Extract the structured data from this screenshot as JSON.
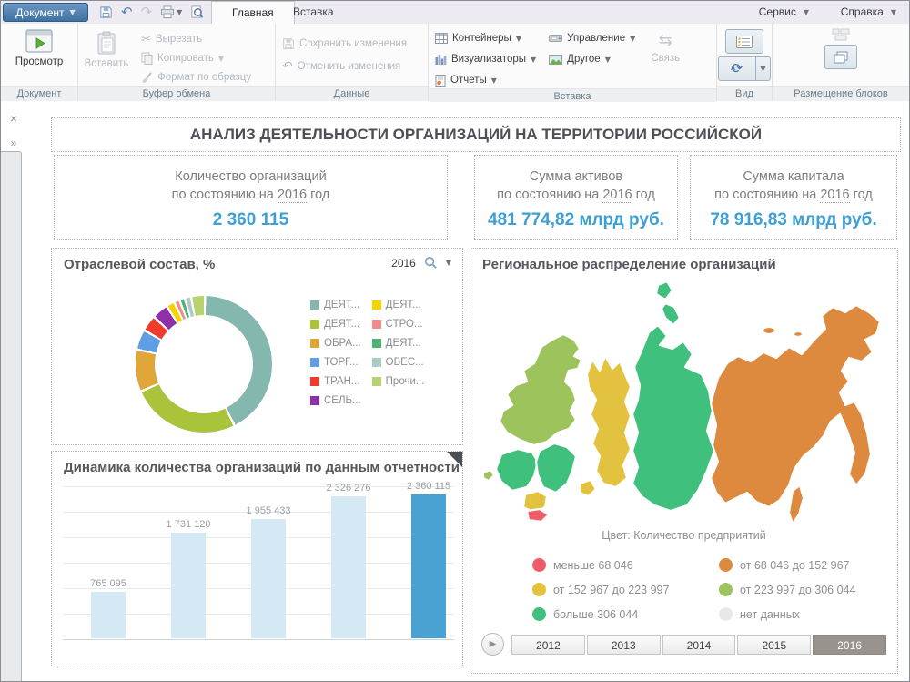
{
  "window": {
    "document_menu": "Документ",
    "tabs": [
      {
        "label": "Главная",
        "active": true
      },
      {
        "label": "Вставка",
        "active": false
      }
    ],
    "menus_right": [
      {
        "label": "Сервис"
      },
      {
        "label": "Справка"
      }
    ]
  },
  "ribbon": {
    "preview": "Просмотр",
    "paste": "Вставить",
    "cut": "Вырезать",
    "copy": "Копировать",
    "format_painter": "Формат по образцу",
    "save_changes": "Сохранить изменения",
    "undo_changes": "Отменить изменения",
    "containers": "Контейнеры",
    "visualizers": "Визуализаторы",
    "reports": "Отчеты",
    "management": "Управление",
    "other": "Другое",
    "link": "Связь",
    "groups": {
      "document": "Документ",
      "clipboard": "Буфер обмена",
      "data": "Данные",
      "insert": "Вставка",
      "view": "Вид",
      "layout": "Размещение блоков"
    }
  },
  "dashboard": {
    "title": "АНАЛИЗ ДЕЯТЕЛЬНОСТИ ОРГАНИЗАЦИЙ НА ТЕРРИТОРИИ РОССИЙСКОЙ",
    "accent_color": "#3d9fd3",
    "kpis": [
      {
        "line1": "Количество организаций",
        "line2_prefix": "по состоянию на",
        "year": "2016",
        "line2_suffix": "год",
        "value": "2 360 115"
      },
      {
        "line1": "Сумма активов",
        "line2_prefix": "по состоянию на",
        "year": "2016",
        "line2_suffix": "год",
        "value": "481 774,82 млрд руб."
      },
      {
        "line1": "Сумма капитала",
        "line2_prefix": "по состоянию на",
        "year": "2016",
        "line2_suffix": "год",
        "value": "78 916,83 млрд руб."
      }
    ],
    "donut_block": {
      "title": "Отраслевой состав, %",
      "year": "2016"
    },
    "bar_block": {
      "title": "Динамика количества организаций по данным отчетности"
    },
    "map_block": {
      "title": "Региональное распределение организаций",
      "legend_title": "Цвет: Количество предприятий"
    }
  },
  "chart_data": [
    {
      "type": "pie",
      "title": "Отраслевой состав, %",
      "year": "2016",
      "hole": 0.72,
      "legend_position": "right",
      "series": [
        {
          "name": "ДЕЯТ...",
          "value": 44.5,
          "color": "#84b7ae"
        },
        {
          "name": "ДЕЯТ...",
          "value": 27.0,
          "color": "#a9c33b"
        },
        {
          "name": "ОБРА...",
          "value": 10.0,
          "color": "#e0a63a"
        },
        {
          "name": "ТОРГ...",
          "value": 4.5,
          "color": "#5f9de4"
        },
        {
          "name": "ТРАН...",
          "value": 3.5,
          "color": "#f03b2d"
        },
        {
          "name": "СЕЛЬ...",
          "value": 3.5,
          "color": "#8f30a8"
        },
        {
          "name": "ДЕЯТ...",
          "value": 1.5,
          "color": "#f5d300"
        },
        {
          "name": "СТРО...",
          "value": 0.8,
          "color": "#f58a8a"
        },
        {
          "name": "ДЕЯТ...",
          "value": 0.8,
          "color": "#4fb273"
        },
        {
          "name": "ОБЕС...",
          "value": 1.0,
          "color": "#a9ccc6"
        },
        {
          "name": "Прочи...",
          "value": 2.9,
          "color": "#b8d36e"
        }
      ]
    },
    {
      "type": "bar",
      "title": "Динамика количества организаций по данным отчетности",
      "categories": [
        "2012",
        "2013",
        "2014",
        "2015",
        "2016"
      ],
      "values": [
        765095,
        1731120,
        1955433,
        2326276,
        2360115
      ],
      "labels": [
        "765 095",
        "1 731 120",
        "1 955 433",
        "2 326 276",
        "2 360 115"
      ],
      "highlight_index": 4,
      "bar_color": "#d5e9f5",
      "highlight_color": "#4aa2d2",
      "grid": true,
      "ylim": [
        0,
        2360115
      ]
    },
    {
      "type": "heatmap",
      "subtype": "choropleth-map",
      "title": "Региональное распределение организаций",
      "color_by": "Количество предприятий",
      "classes": [
        {
          "label": "меньше 68 046",
          "color": "#ef5e68"
        },
        {
          "label": "от 68 046 до 152 967",
          "color": "#dd8a3e"
        },
        {
          "label": "от 152 967 до 223 997",
          "color": "#e2c23f"
        },
        {
          "label": "от 223 997 до 306 044",
          "color": "#9dc45c"
        },
        {
          "label": "больше 306 044",
          "color": "#3fc07c"
        },
        {
          "label": "нет данных",
          "color": "#e8e8e8"
        }
      ],
      "years": [
        "2012",
        "2013",
        "2014",
        "2015",
        "2016"
      ],
      "selected_year": "2016",
      "regions": [
        {
          "id": "northwest",
          "color": "#9dc45c"
        },
        {
          "id": "kaliningrad",
          "color": "#9dc45c"
        },
        {
          "id": "central",
          "color": "#3fc07c"
        },
        {
          "id": "volga",
          "color": "#3fc07c"
        },
        {
          "id": "volga-south-blob",
          "color": "#e2c23f"
        },
        {
          "id": "south",
          "color": "#e2c23f"
        },
        {
          "id": "north-caucasus",
          "color": "#ef5e68"
        },
        {
          "id": "ural",
          "color": "#e2c23f"
        },
        {
          "id": "siberia",
          "color": "#3fc07c"
        },
        {
          "id": "far-east",
          "color": "#dd8a3e"
        },
        {
          "id": "sakhalin",
          "color": "#dd8a3e"
        },
        {
          "id": "arctic-island-1",
          "color": "#dd8a3e"
        },
        {
          "id": "arctic-island-2",
          "color": "#dd8a3e"
        },
        {
          "id": "novaya-zemlya-1",
          "color": "#3fc07c"
        },
        {
          "id": "novaya-zemlya-2",
          "color": "#3fc07c"
        }
      ]
    }
  ]
}
